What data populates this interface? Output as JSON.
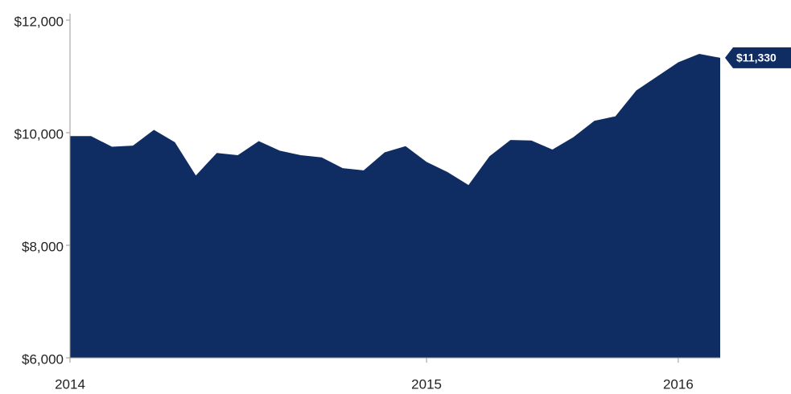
{
  "chart_data": {
    "type": "area",
    "categories": [
      "2014",
      null,
      null,
      null,
      null,
      null,
      null,
      null,
      null,
      null,
      null,
      null,
      null,
      null,
      null,
      null,
      null,
      "2015",
      null,
      null,
      null,
      null,
      null,
      null,
      null,
      null,
      null,
      null,
      null,
      "2016",
      null,
      null
    ],
    "values": [
      9940,
      9940,
      9750,
      9770,
      10050,
      9830,
      9240,
      9640,
      9600,
      9850,
      9680,
      9600,
      9560,
      9370,
      9330,
      9650,
      9760,
      9480,
      9300,
      9070,
      9580,
      9870,
      9860,
      9700,
      9920,
      10210,
      10290,
      10750,
      11000,
      11250,
      11400,
      11330
    ],
    "value_labels": [
      null,
      null,
      null,
      null,
      null,
      null,
      null,
      null,
      null,
      null,
      null,
      null,
      null,
      null,
      null,
      null,
      null,
      null,
      null,
      null,
      null,
      null,
      null,
      null,
      null,
      null,
      null,
      null,
      null,
      null,
      null,
      "$11,330"
    ],
    "color": "#0f2d62",
    "ylim": [
      6000,
      12000
    ],
    "yticks": [
      {
        "value": 6000,
        "label": "$6,000"
      },
      {
        "value": 8000,
        "label": "$8,000"
      },
      {
        "value": 10000,
        "label": "$10,000"
      },
      {
        "value": 12000,
        "label": "$12,000"
      }
    ]
  }
}
